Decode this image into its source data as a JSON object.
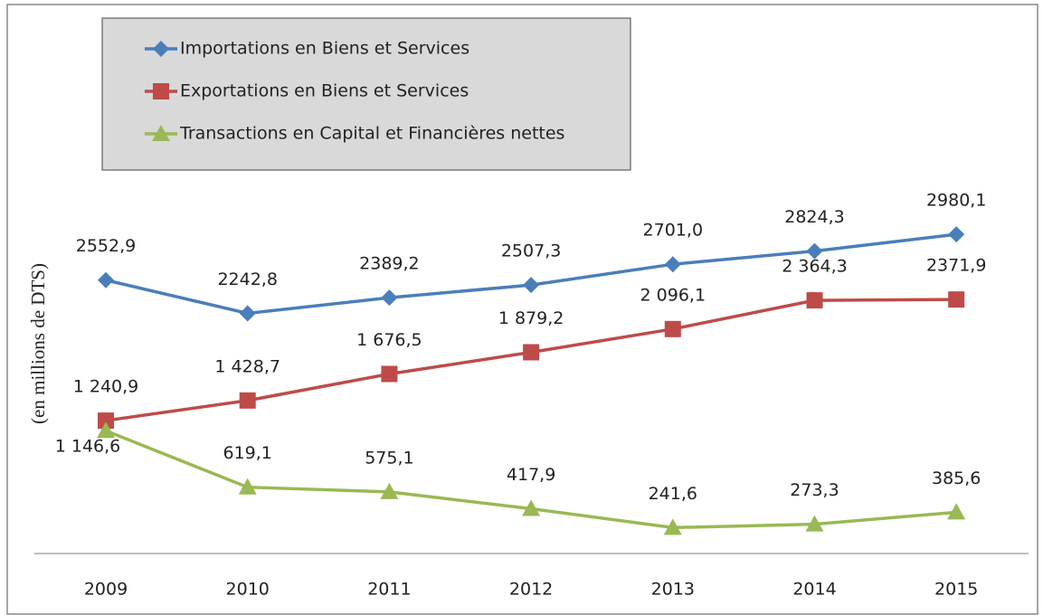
{
  "chart_data": {
    "type": "line",
    "y_label": "(en millions de DTS)",
    "categories": [
      "2009",
      "2010",
      "2011",
      "2012",
      "2013",
      "2014",
      "2015"
    ],
    "ylim": [
      0,
      5000
    ],
    "legend": "top-left",
    "series": [
      {
        "name": "Importations en Biens et Services",
        "color": "#4a7ebb",
        "marker": "diamond",
        "values": [
          2552.9,
          2242.8,
          2389.2,
          2507.3,
          2701.0,
          2824.3,
          2980.1
        ],
        "value_labels": [
          "2552,9",
          "2242,8",
          "2389,2",
          "2507,3",
          "2701,0",
          "2824,3",
          "2980,1"
        ]
      },
      {
        "name": "Exportations en Biens et Services",
        "color": "#be4b48",
        "marker": "square",
        "values": [
          1240.9,
          1428.7,
          1676.5,
          1879.2,
          2096.1,
          2364.3,
          2371.9
        ],
        "value_labels": [
          "1 240,9",
          "1 428,7",
          "1 676,5",
          "1 879,2",
          "2 096,1",
          "2 364,3",
          "2371,9"
        ]
      },
      {
        "name": "Transactions en Capital et Financières nettes",
        "color": "#98b954",
        "marker": "triangle",
        "values": [
          1146.6,
          619.1,
          575.1,
          417.9,
          241.6,
          273.3,
          385.6
        ],
        "value_labels": [
          "1 146,6",
          "619,1",
          "575,1",
          "417,9",
          "241,6",
          "273,3",
          "385,6"
        ]
      }
    ]
  }
}
